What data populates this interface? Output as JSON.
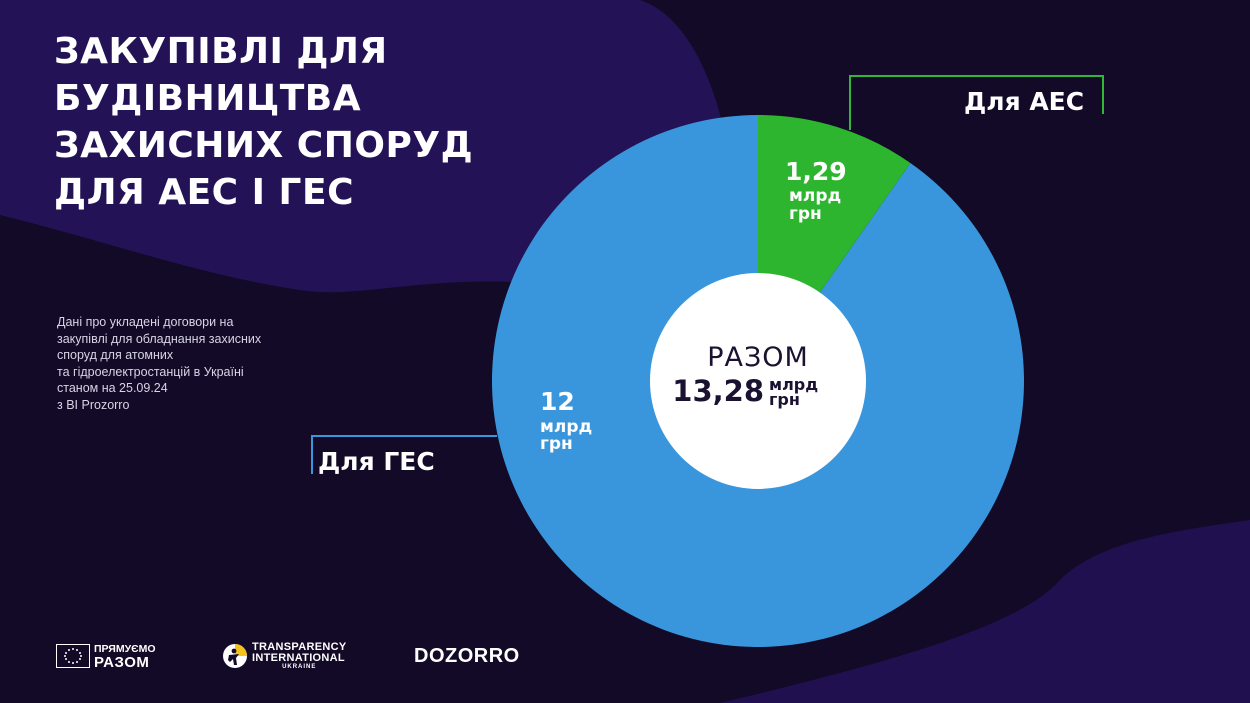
{
  "title_lines": [
    "ЗАКУПІВЛІ ДЛЯ БУДІВНИЦТВА",
    "ЗАХИСНИХ СПОРУД",
    "ДЛЯ АЕС І ГЕС"
  ],
  "note_lines": [
    "Дані про укладені договори на",
    "закупівлі для обладнання захисних",
    "споруд для атомних",
    "та гідроелектростанцій в Україні",
    "станом на 25.09.24",
    "з BI Prozorro"
  ],
  "colors": {
    "background": "#120a26",
    "background_wave": "#241257",
    "hes": "#3a96dc",
    "aes": "#2db52f",
    "center": "#ffffff",
    "aes_leader": "#2fb838",
    "hes_leader": "#3a96dc"
  },
  "chart_data": {
    "type": "pie",
    "style": "donut",
    "slices": [
      {
        "name": "Для АЕС",
        "value": 1.29,
        "value_text": "1,29",
        "unit_lines": [
          "млрд",
          "грн"
        ],
        "color": "#2db52f"
      },
      {
        "name": "Для ГЕС",
        "value": 12,
        "value_text": "12",
        "unit_lines": [
          "млрд",
          "грн"
        ],
        "color": "#3a96dc"
      }
    ],
    "total": {
      "caption": "РАЗОМ",
      "value": 13.28,
      "value_text": "13,28",
      "unit_lines": [
        "млрд",
        "грн"
      ]
    }
  },
  "logos": {
    "eu": {
      "line1": "ПРЯМУЄМО",
      "line2": "РАЗОМ",
      "icon": "eu-stars-flag-icon"
    },
    "ti": {
      "line1": "TRANSPARENCY",
      "line2": "INTERNATIONAL",
      "line3": "UKRAINE",
      "icon": "ti-figure-icon"
    },
    "dozorro": {
      "text": "DOZORRO"
    }
  }
}
